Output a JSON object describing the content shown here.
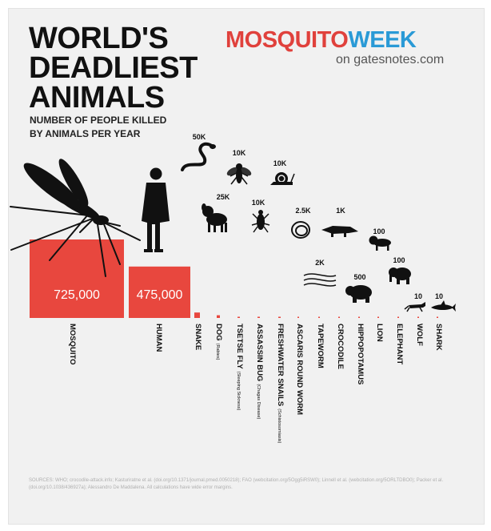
{
  "title": "WORLD'S\nDEADLIEST\nANIMALS",
  "subtitle": "NUMBER OF PEOPLE KILLED\nBY ANIMALS PER YEAR",
  "brand": {
    "part1": "MOSQUITO",
    "part2": "WEEK",
    "subtitle": "on gatesnotes.com",
    "color1": "#e0413c",
    "color2": "#2a9ad6"
  },
  "sources": "SOURCES: WHO; crocodile-attack.info; Kasturiratne et al. (doi.org/10.1371/journal.pmed.0050218); FAO (webcitation.org/5Ogg5iRSW0); Linnell et al. (webcitation.org/5ORLTDBO0); Packer et al. (doi.org/10.1038/436927a); Alessandro De Maddalena. All calculations have wide error margins.",
  "colors": {
    "bar": "#e8473e",
    "label_text": "#111111"
  },
  "chart_data": {
    "type": "bar",
    "categories": [
      "MOSQUITO",
      "HUMAN",
      "SNAKE",
      "DOG",
      "TSETSE FLY",
      "ASSASSIN BUG",
      "FRESHWATER SNAILS",
      "ASCARIS ROUND WORM",
      "TAPEWORM",
      "CROCODILE",
      "HIPPOPOTAMUS",
      "LION",
      "ELEPHANT",
      "WOLF",
      "SHARK"
    ],
    "sublabels": [
      "",
      "",
      "",
      "(Rabies)",
      "(Sleeping Sickness)",
      "(Chagas Disease)",
      "(Schistosomiasis)",
      "",
      "",
      "",
      "",
      "",
      "",
      "",
      ""
    ],
    "values": [
      725000,
      475000,
      50000,
      25000,
      10000,
      10000,
      10000,
      2500,
      2000,
      1000,
      500,
      100,
      100,
      10,
      10
    ],
    "value_labels": [
      "725,000",
      "475,000",
      "50K",
      "25K",
      "10K",
      "10K",
      "10K",
      "2.5K",
      "2K",
      "1K",
      "500",
      "100",
      "100",
      "10",
      "10"
    ],
    "icons": [
      "mosquito-icon",
      "human-icon",
      "snake-icon",
      "dog-icon",
      "tsetse-fly-icon",
      "assassin-bug-icon",
      "snail-icon",
      "roundworm-icon",
      "tapeworm-icon",
      "crocodile-icon",
      "hippo-icon",
      "lion-icon",
      "elephant-icon",
      "wolf-icon",
      "shark-icon"
    ]
  }
}
